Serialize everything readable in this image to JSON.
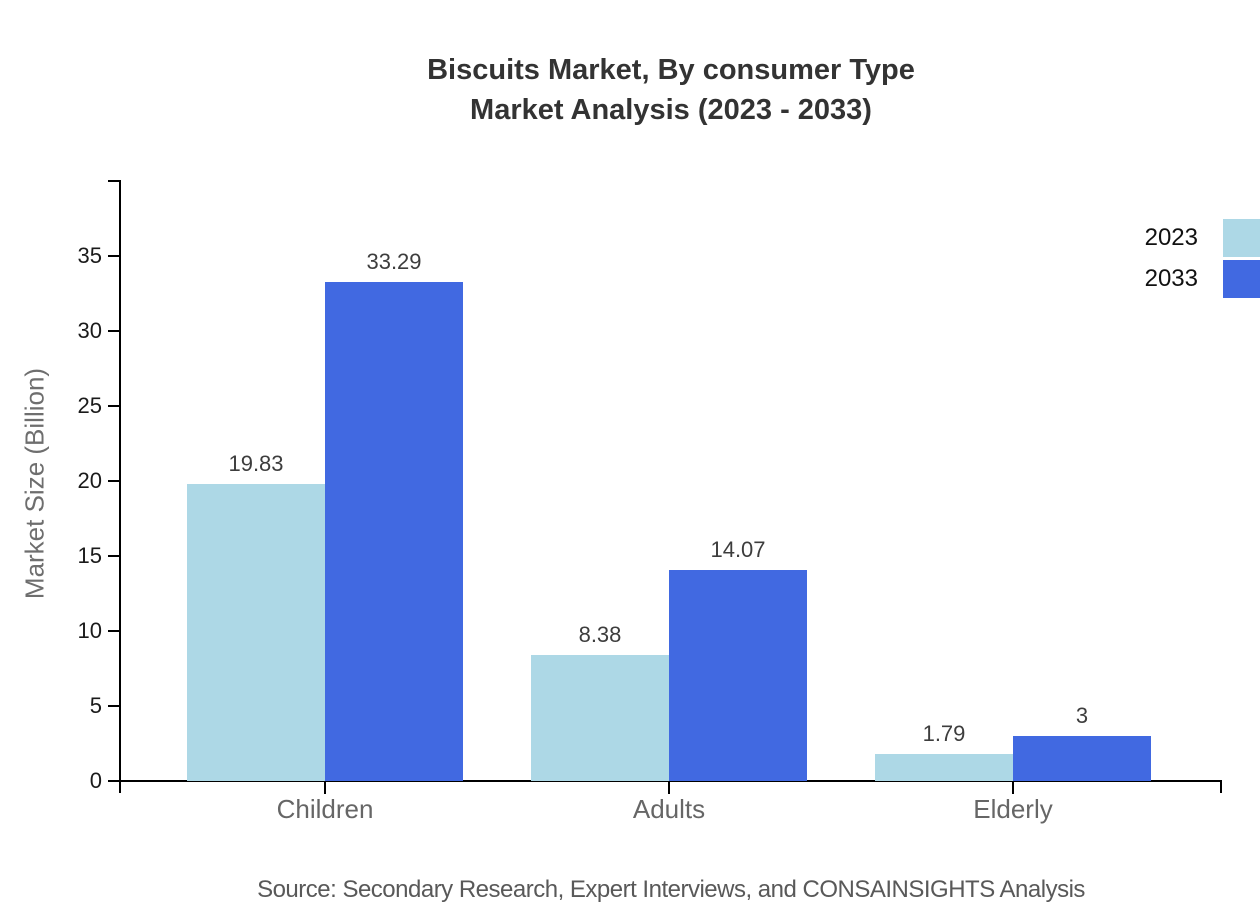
{
  "title": {
    "line1": "Biscuits Market, By consumer Type",
    "line2": "Market Analysis (2023 - 2033)"
  },
  "source_note": "Source: Secondary Research, Expert Interviews, and CONSAINSIGHTS Analysis",
  "chart_data": {
    "type": "bar",
    "title": "Biscuits Market, By consumer Type Market Analysis (2023 - 2033)",
    "categories": [
      "Children",
      "Adults",
      "Elderly"
    ],
    "series": [
      {
        "name": "2023",
        "color": "#ADD8E6",
        "values": [
          19.83,
          8.38,
          1.79
        ]
      },
      {
        "name": "2033",
        "color": "#4169E1",
        "values": [
          33.29,
          14.07,
          3
        ]
      }
    ],
    "xlabel": "",
    "ylabel": "Market Size (Billion)",
    "ylim": [
      0,
      40
    ],
    "yticks": [
      0,
      5,
      10,
      15,
      20,
      25,
      30,
      35
    ],
    "grid": false,
    "legend_position": "top-right",
    "value_labels_shown": true
  },
  "colors": {
    "axis": "#000000",
    "title_text": "#333333",
    "tick_label": "#1a1a1a",
    "category_label": "#666666",
    "value_label": "#3d3d3d",
    "ylabel_text": "#6e6e6e",
    "source_text": "#595959"
  }
}
